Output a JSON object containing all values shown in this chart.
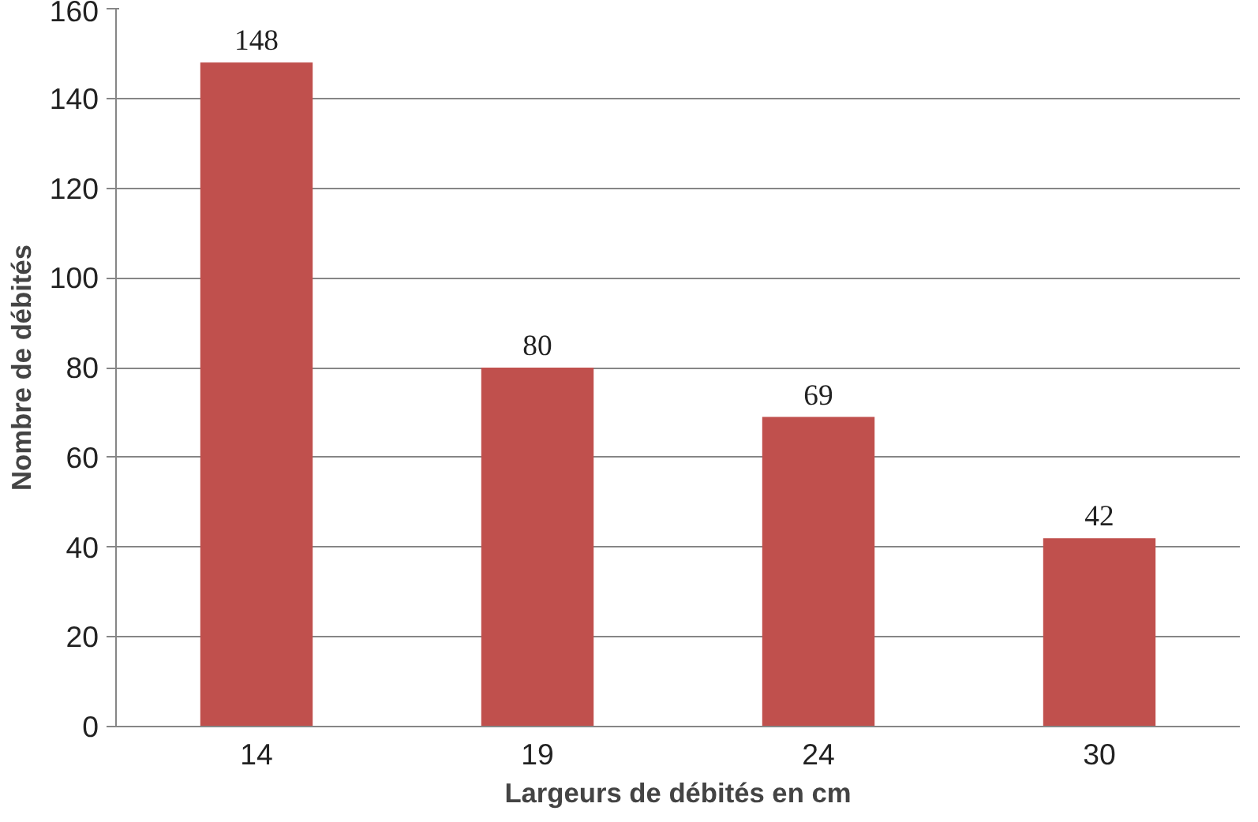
{
  "chart_data": {
    "type": "bar",
    "xlabel": "Largeurs de débités en cm",
    "ylabel": "Nombre de débités",
    "categories": [
      "14",
      "19",
      "24",
      "30"
    ],
    "values": [
      148,
      80,
      69,
      42
    ],
    "color": "#c0504d",
    "ylim": [
      0,
      160
    ],
    "yticks": [
      0,
      20,
      40,
      60,
      80,
      100,
      120,
      140,
      160
    ],
    "grid": "y",
    "data_labels": true
  }
}
